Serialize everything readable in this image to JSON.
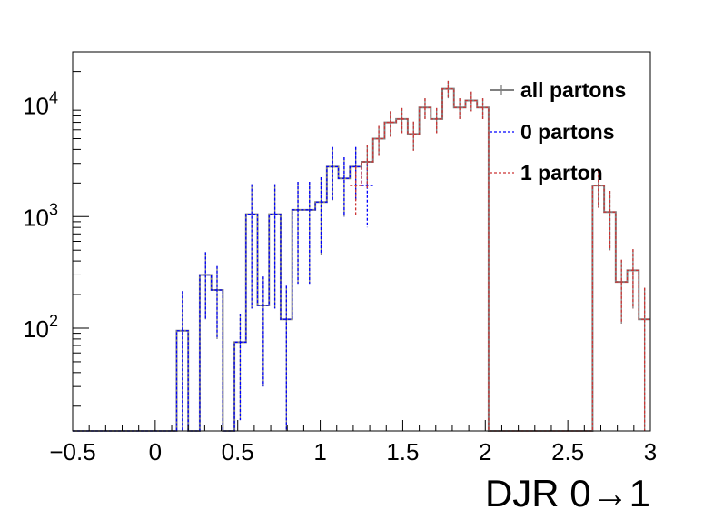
{
  "chart_data": {
    "type": "histogram",
    "xlabel": "DJR 0→1",
    "ylabel": "",
    "xlim": [
      -0.5,
      3.0
    ],
    "ylim": [
      12,
      30000
    ],
    "yscale": "log",
    "grid": false,
    "legend_position": "top-right",
    "x_tick_labels": [
      "−0.5",
      "0",
      "0.5",
      "1",
      "1.5",
      "2",
      "2.5",
      "3"
    ],
    "x_tick_values": [
      -0.5,
      0,
      0.5,
      1,
      1.5,
      2,
      2.5,
      3
    ],
    "y_tick_values": [
      100,
      1000,
      10000
    ],
    "y_tick_labels": [
      {
        "base": "10",
        "exp": "2"
      },
      {
        "base": "10",
        "exp": "3"
      },
      {
        "base": "10",
        "exp": "4"
      }
    ],
    "bin_width": 0.07,
    "bin_start": -0.5,
    "series": [
      {
        "name": "all partons",
        "color": "#808080",
        "style": "solid",
        "values": [
          0,
          0,
          0,
          0,
          0,
          0,
          0,
          0,
          0,
          95,
          0,
          300,
          220,
          0,
          75,
          1050,
          160,
          1050,
          120,
          1150,
          1150,
          1350,
          2800,
          2200,
          2800,
          3100,
          5000,
          7000,
          7500,
          5500,
          9500,
          7500,
          14000,
          9500,
          11000,
          9500,
          0,
          0,
          0,
          0,
          0,
          0,
          0,
          0,
          0,
          1900,
          1100,
          260,
          330,
          120
        ],
        "errors": [
          0,
          0,
          0,
          0,
          0,
          0,
          0,
          0,
          0,
          120,
          0,
          180,
          140,
          0,
          60,
          900,
          130,
          900,
          120,
          900,
          900,
          900,
          1400,
          1200,
          1400,
          1300,
          1500,
          1800,
          1900,
          1600,
          2000,
          1900,
          2500,
          2000,
          2200,
          2000,
          0,
          0,
          0,
          0,
          0,
          0,
          0,
          0,
          0,
          700,
          600,
          150,
          180,
          110
        ]
      },
      {
        "name": "0 partons",
        "color": "#0000ff",
        "style": "dashed",
        "values": [
          0,
          0,
          0,
          0,
          0,
          0,
          0,
          0,
          0,
          95,
          0,
          300,
          220,
          0,
          75,
          1050,
          160,
          1050,
          120,
          1150,
          1150,
          1350,
          2800,
          2200,
          2800,
          1900
        ],
        "errors": [
          0,
          0,
          0,
          0,
          0,
          0,
          0,
          0,
          0,
          120,
          0,
          180,
          140,
          0,
          60,
          900,
          130,
          900,
          120,
          900,
          900,
          900,
          1400,
          1200,
          1400,
          1100
        ]
      },
      {
        "name": "1 parton",
        "color": "#cc3333",
        "style": "dashed",
        "start_bin": 24,
        "values": [
          1900,
          3100,
          5000,
          7000,
          7500,
          5500,
          9500,
          7500,
          14000,
          9500,
          11000,
          9500,
          0,
          0,
          0,
          0,
          0,
          0,
          0,
          0,
          0,
          1900,
          1100,
          260,
          330,
          120
        ],
        "errors": [
          900,
          1300,
          1500,
          1800,
          1900,
          1600,
          2000,
          1900,
          2500,
          2000,
          2200,
          2000,
          0,
          0,
          0,
          0,
          0,
          0,
          0,
          0,
          0,
          700,
          600,
          150,
          180,
          110
        ]
      }
    ]
  }
}
